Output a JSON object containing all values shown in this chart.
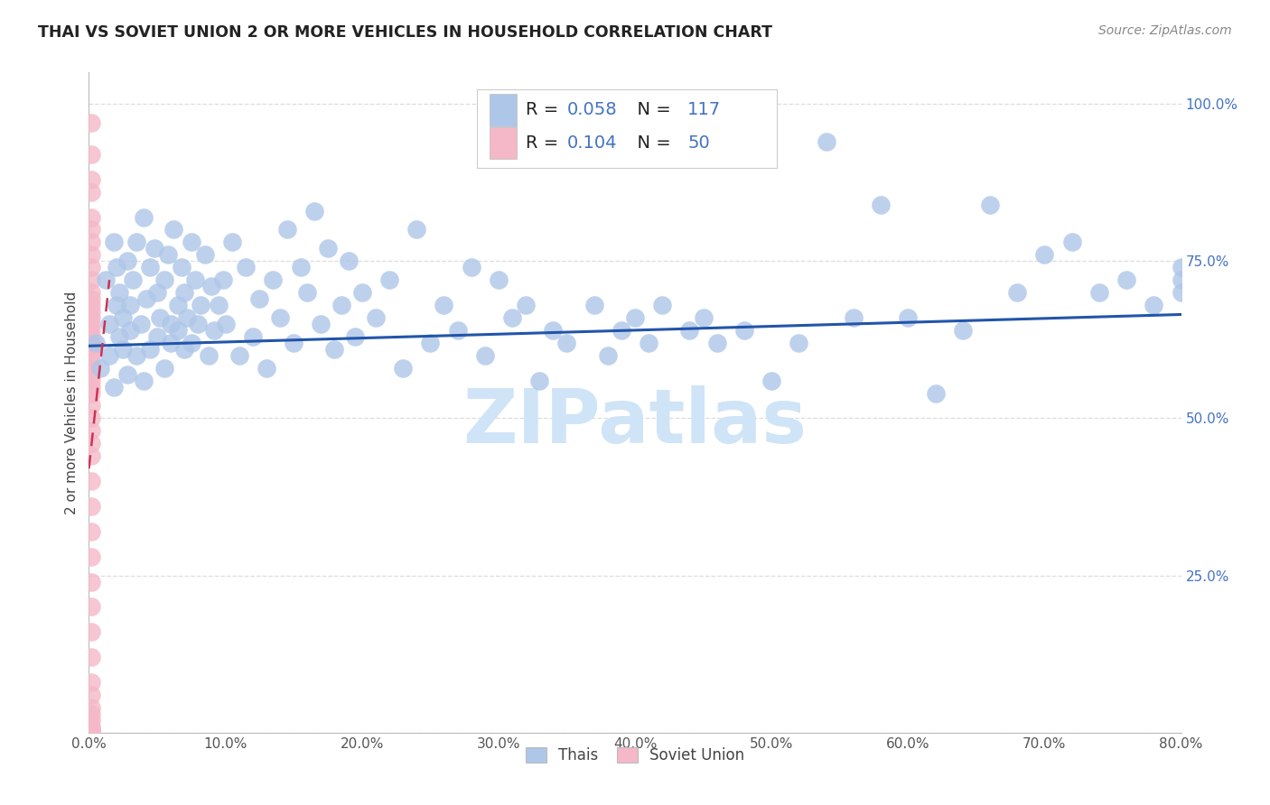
{
  "title": "THAI VS SOVIET UNION 2 OR MORE VEHICLES IN HOUSEHOLD CORRELATION CHART",
  "source": "Source: ZipAtlas.com",
  "xlabel_range": [
    0.0,
    0.8
  ],
  "ylabel_range": [
    0.0,
    1.05
  ],
  "ylabel_label": "2 or more Vehicles in Household",
  "blue_color": "#aec6e8",
  "blue_edge_color": "#aec6e8",
  "pink_color": "#f4b8c8",
  "pink_edge_color": "#f4b8c8",
  "blue_line_color": "#2255aa",
  "pink_line_color": "#cc3355",
  "watermark_color": "#d0e4f7",
  "watermark_text": "ZIPatlas",
  "title_color": "#222222",
  "source_color": "#888888",
  "tick_color_x": "#555555",
  "tick_color_y": "#4472c4",
  "grid_color": "#dddddd",
  "legend_edge_color": "#cccccc",
  "blue_r": "0.058",
  "blue_n": "117",
  "pink_r": "0.104",
  "pink_n": "50",
  "legend_text_color": "#222222",
  "legend_value_color": "#4472c4",
  "thai_line_x0": 0.0,
  "thai_line_x1": 0.8,
  "thai_line_y0": 0.615,
  "thai_line_y1": 0.665,
  "soviet_line_x0": 0.0,
  "soviet_line_x1": 0.015,
  "soviet_line_y0": 0.42,
  "soviet_line_y1": 0.72,
  "thais_x": [
    0.005,
    0.008,
    0.012,
    0.015,
    0.015,
    0.018,
    0.018,
    0.02,
    0.02,
    0.022,
    0.022,
    0.025,
    0.025,
    0.028,
    0.028,
    0.03,
    0.03,
    0.032,
    0.035,
    0.035,
    0.038,
    0.04,
    0.04,
    0.042,
    0.045,
    0.045,
    0.048,
    0.05,
    0.05,
    0.052,
    0.055,
    0.055,
    0.058,
    0.06,
    0.06,
    0.062,
    0.065,
    0.065,
    0.068,
    0.07,
    0.07,
    0.072,
    0.075,
    0.075,
    0.078,
    0.08,
    0.082,
    0.085,
    0.088,
    0.09,
    0.092,
    0.095,
    0.098,
    0.1,
    0.105,
    0.11,
    0.115,
    0.12,
    0.125,
    0.13,
    0.135,
    0.14,
    0.145,
    0.15,
    0.155,
    0.16,
    0.165,
    0.17,
    0.175,
    0.18,
    0.185,
    0.19,
    0.195,
    0.2,
    0.21,
    0.22,
    0.23,
    0.24,
    0.25,
    0.26,
    0.27,
    0.28,
    0.29,
    0.3,
    0.31,
    0.32,
    0.33,
    0.34,
    0.35,
    0.37,
    0.38,
    0.39,
    0.4,
    0.41,
    0.42,
    0.44,
    0.45,
    0.46,
    0.48,
    0.5,
    0.52,
    0.54,
    0.56,
    0.58,
    0.6,
    0.62,
    0.64,
    0.66,
    0.68,
    0.7,
    0.72,
    0.74,
    0.76,
    0.78,
    0.8,
    0.8,
    0.8
  ],
  "thais_y": [
    0.62,
    0.58,
    0.72,
    0.65,
    0.6,
    0.78,
    0.55,
    0.68,
    0.74,
    0.63,
    0.7,
    0.66,
    0.61,
    0.75,
    0.57,
    0.68,
    0.64,
    0.72,
    0.78,
    0.6,
    0.65,
    0.82,
    0.56,
    0.69,
    0.74,
    0.61,
    0.77,
    0.63,
    0.7,
    0.66,
    0.72,
    0.58,
    0.76,
    0.65,
    0.62,
    0.8,
    0.68,
    0.64,
    0.74,
    0.61,
    0.7,
    0.66,
    0.78,
    0.62,
    0.72,
    0.65,
    0.68,
    0.76,
    0.6,
    0.71,
    0.64,
    0.68,
    0.72,
    0.65,
    0.78,
    0.6,
    0.74,
    0.63,
    0.69,
    0.58,
    0.72,
    0.66,
    0.8,
    0.62,
    0.74,
    0.7,
    0.83,
    0.65,
    0.77,
    0.61,
    0.68,
    0.75,
    0.63,
    0.7,
    0.66,
    0.72,
    0.58,
    0.8,
    0.62,
    0.68,
    0.64,
    0.74,
    0.6,
    0.72,
    0.66,
    0.68,
    0.56,
    0.64,
    0.62,
    0.68,
    0.6,
    0.64,
    0.66,
    0.62,
    0.68,
    0.64,
    0.66,
    0.62,
    0.64,
    0.56,
    0.62,
    0.94,
    0.66,
    0.84,
    0.66,
    0.54,
    0.64,
    0.84,
    0.7,
    0.76,
    0.78,
    0.7,
    0.72,
    0.68,
    0.72,
    0.74,
    0.7
  ],
  "soviet_x": [
    0.002,
    0.002,
    0.002,
    0.002,
    0.002,
    0.002,
    0.002,
    0.002,
    0.002,
    0.002,
    0.002,
    0.002,
    0.002,
    0.002,
    0.002,
    0.002,
    0.002,
    0.002,
    0.002,
    0.002,
    0.002,
    0.002,
    0.002,
    0.002,
    0.002,
    0.002,
    0.002,
    0.002,
    0.002,
    0.002,
    0.002,
    0.002,
    0.002,
    0.002,
    0.002,
    0.002,
    0.002,
    0.002,
    0.002,
    0.002,
    0.002,
    0.002,
    0.002,
    0.002,
    0.002,
    0.002,
    0.002,
    0.002,
    0.002,
    0.002
  ],
  "soviet_y": [
    0.97,
    0.92,
    0.88,
    0.86,
    0.82,
    0.8,
    0.78,
    0.76,
    0.74,
    0.72,
    0.7,
    0.69,
    0.68,
    0.67,
    0.66,
    0.65,
    0.64,
    0.63,
    0.62,
    0.61,
    0.6,
    0.59,
    0.58,
    0.57,
    0.56,
    0.55,
    0.54,
    0.52,
    0.5,
    0.48,
    0.46,
    0.44,
    0.4,
    0.36,
    0.32,
    0.28,
    0.24,
    0.2,
    0.16,
    0.12,
    0.08,
    0.06,
    0.04,
    0.03,
    0.02,
    0.01,
    0.005,
    0.003,
    0.001,
    0.001
  ]
}
